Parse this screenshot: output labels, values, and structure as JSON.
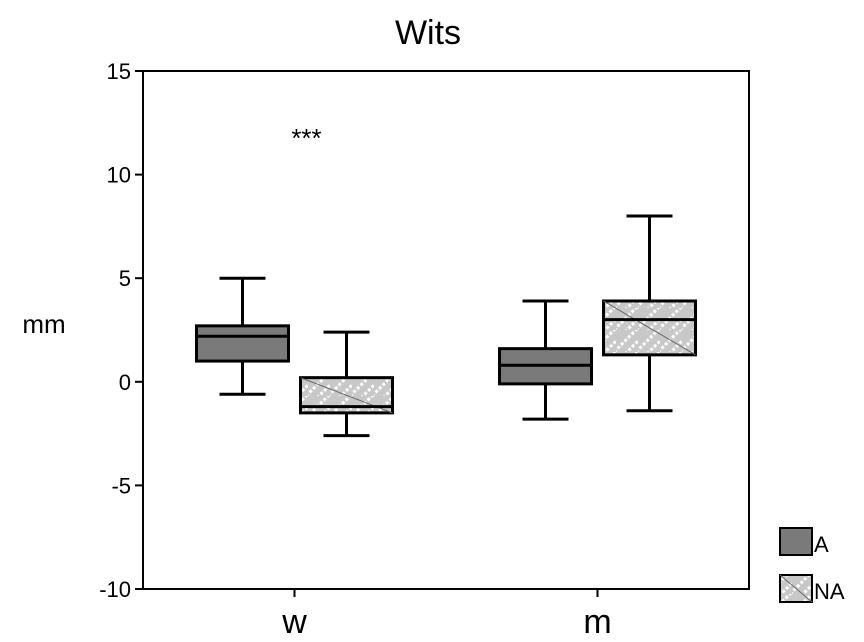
{
  "chart_data": {
    "type": "boxplot",
    "title": "Wits",
    "xlabel": "",
    "ylabel": "mm",
    "ylim": [
      -10,
      15
    ],
    "yticks": [
      -10,
      -5,
      0,
      5,
      10,
      15
    ],
    "categories": [
      "w",
      "m"
    ],
    "grid": false,
    "legend_position": "bottom-right",
    "series": [
      {
        "name": "A",
        "fill": "#7a7a7a",
        "pattern": "solid",
        "boxes": [
          {
            "category": "w",
            "min": -0.6,
            "q1": 1.0,
            "median": 2.2,
            "q3": 2.7,
            "max": 5.0
          },
          {
            "category": "m",
            "min": -1.8,
            "q1": -0.1,
            "median": 0.8,
            "q3": 1.6,
            "max": 3.9
          }
        ]
      },
      {
        "name": "NA",
        "fill": "#c8c8c8",
        "pattern": "hatched",
        "boxes": [
          {
            "category": "w",
            "min": -2.6,
            "q1": -1.5,
            "median": -1.2,
            "q3": 0.2,
            "max": 2.4
          },
          {
            "category": "m",
            "min": -1.4,
            "q1": 1.3,
            "median": 3.0,
            "q3": 3.9,
            "max": 8.0
          }
        ]
      }
    ],
    "annotations": [
      {
        "text": "***",
        "category": "w",
        "y": 12.2
      }
    ]
  }
}
